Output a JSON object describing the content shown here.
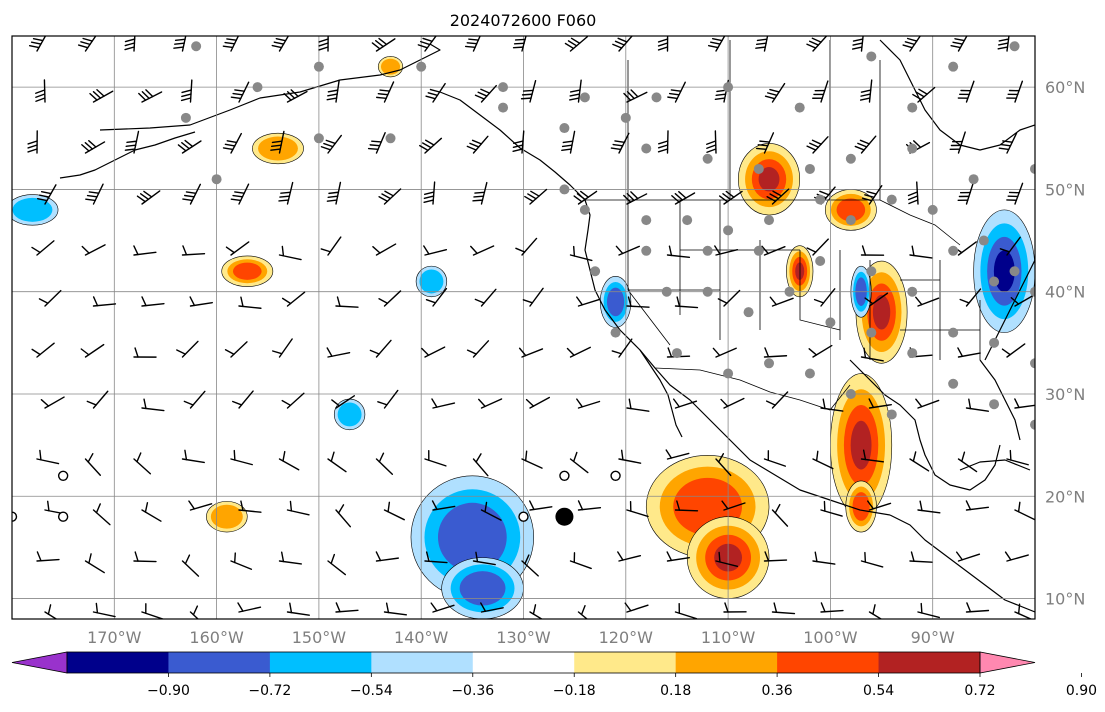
{
  "title": "2024072600 F060",
  "map": {
    "lon_range": [
      -180,
      -80
    ],
    "lat_range": [
      8,
      65
    ],
    "projection": "PlateCarree",
    "grid": true,
    "lat_labels": [
      {
        "lat": 60,
        "text": "60°N"
      },
      {
        "lat": 50,
        "text": "50°N"
      },
      {
        "lat": 40,
        "text": "40°N"
      },
      {
        "lat": 30,
        "text": "30°N"
      },
      {
        "lat": 20,
        "text": "20°N"
      },
      {
        "lat": 10,
        "text": "10°N"
      }
    ],
    "lon_labels": [
      {
        "lon": -170,
        "text": "170°W"
      },
      {
        "lon": -160,
        "text": "160°W"
      },
      {
        "lon": -150,
        "text": "150°W"
      },
      {
        "lon": -140,
        "text": "140°W"
      },
      {
        "lon": -130,
        "text": "130°W"
      },
      {
        "lon": -120,
        "text": "120°W"
      },
      {
        "lon": -110,
        "text": "110°W"
      },
      {
        "lon": -100,
        "text": "100°W"
      },
      {
        "lon": -90,
        "text": "90°W"
      }
    ]
  },
  "colorbar": {
    "extend": "both",
    "colors": [
      "#9932cc",
      "#00008b",
      "#3a5bd0",
      "#00bfff",
      "#b0e0ff",
      "#ffffff",
      "#ffe98a",
      "#ffa500",
      "#ff4500",
      "#b22222",
      "#ff88b0"
    ],
    "tick_labels": [
      "−0.90",
      "−0.72",
      "−0.54",
      "−0.36",
      "−0.18",
      "0.18",
      "0.36",
      "0.54",
      "0.72",
      "0.90"
    ]
  },
  "fields": {
    "positive": [
      {
        "name": "gulf-mexico-positive",
        "lon": -97,
        "lat": 25,
        "rx": 3,
        "ry": 7,
        "max": 0.72
      },
      {
        "name": "mexico-pacific-positive",
        "lon": -112,
        "lat": 19,
        "rx": 6,
        "ry": 5,
        "max": 0.54
      },
      {
        "name": "east-pacific-positive",
        "lon": -110,
        "lat": 14,
        "rx": 4,
        "ry": 4,
        "max": 0.72
      },
      {
        "name": "central-us-positive",
        "lon": -95,
        "lat": 38,
        "rx": 2.5,
        "ry": 5,
        "max": 0.72
      },
      {
        "name": "canada-prairie-positive",
        "lon": -106,
        "lat": 51,
        "rx": 3,
        "ry": 3.5,
        "max": 0.72
      },
      {
        "name": "ontario-positive",
        "lon": -98,
        "lat": 48,
        "rx": 2.5,
        "ry": 2,
        "max": 0.54
      },
      {
        "name": "plains-positive",
        "lon": -103,
        "lat": 42,
        "rx": 1.3,
        "ry": 2.5,
        "max": 0.72
      },
      {
        "name": "north-pacific-positive",
        "lon": -157,
        "lat": 42,
        "rx": 2.5,
        "ry": 1.5,
        "max": 0.54
      },
      {
        "name": "gulf-alaska-positive",
        "lon": -154,
        "lat": 54,
        "rx": 2.5,
        "ry": 1.5,
        "max": 0.36
      },
      {
        "name": "alaska-coast-positive",
        "lon": -143,
        "lat": 62,
        "rx": 1.2,
        "ry": 1,
        "max": 0.36
      },
      {
        "name": "west-pacific-positive",
        "lon": -159,
        "lat": 18,
        "rx": 2,
        "ry": 1.5,
        "max": 0.36
      },
      {
        "name": "gulf-small-positive",
        "lon": -97,
        "lat": 19,
        "rx": 1.5,
        "ry": 2.5,
        "max": 0.54
      }
    ],
    "negative": [
      {
        "name": "central-pacific-negative",
        "lon": -135,
        "lat": 16,
        "rx": 6,
        "ry": 6,
        "min": -0.54
      },
      {
        "name": "pacific-south-negative",
        "lon": -134,
        "lat": 11,
        "rx": 4,
        "ry": 3,
        "min": -0.54
      },
      {
        "name": "great-lakes-negative",
        "lon": -83,
        "lat": 42,
        "rx": 3,
        "ry": 6,
        "min": -0.72
      },
      {
        "name": "midwest-negative",
        "lon": -97,
        "lat": 40,
        "rx": 1,
        "ry": 2.5,
        "min": -0.54
      },
      {
        "name": "california-negative",
        "lon": -121,
        "lat": 39,
        "rx": 1.5,
        "ry": 2.5,
        "min": -0.54
      },
      {
        "name": "pacific-north-negative",
        "lon": -139,
        "lat": 41,
        "rx": 1.5,
        "ry": 1.5,
        "min": -0.36
      },
      {
        "name": "bering-negative",
        "lon": -178,
        "lat": 48,
        "rx": 2.5,
        "ry": 1.5,
        "min": -0.36
      },
      {
        "name": "pacific-islands-negative",
        "lon": -147,
        "lat": 28,
        "rx": 1.5,
        "ry": 1.5,
        "min": -0.36
      }
    ]
  },
  "markers": {
    "tropical_center": {
      "lon": -126,
      "lat": 18
    }
  }
}
